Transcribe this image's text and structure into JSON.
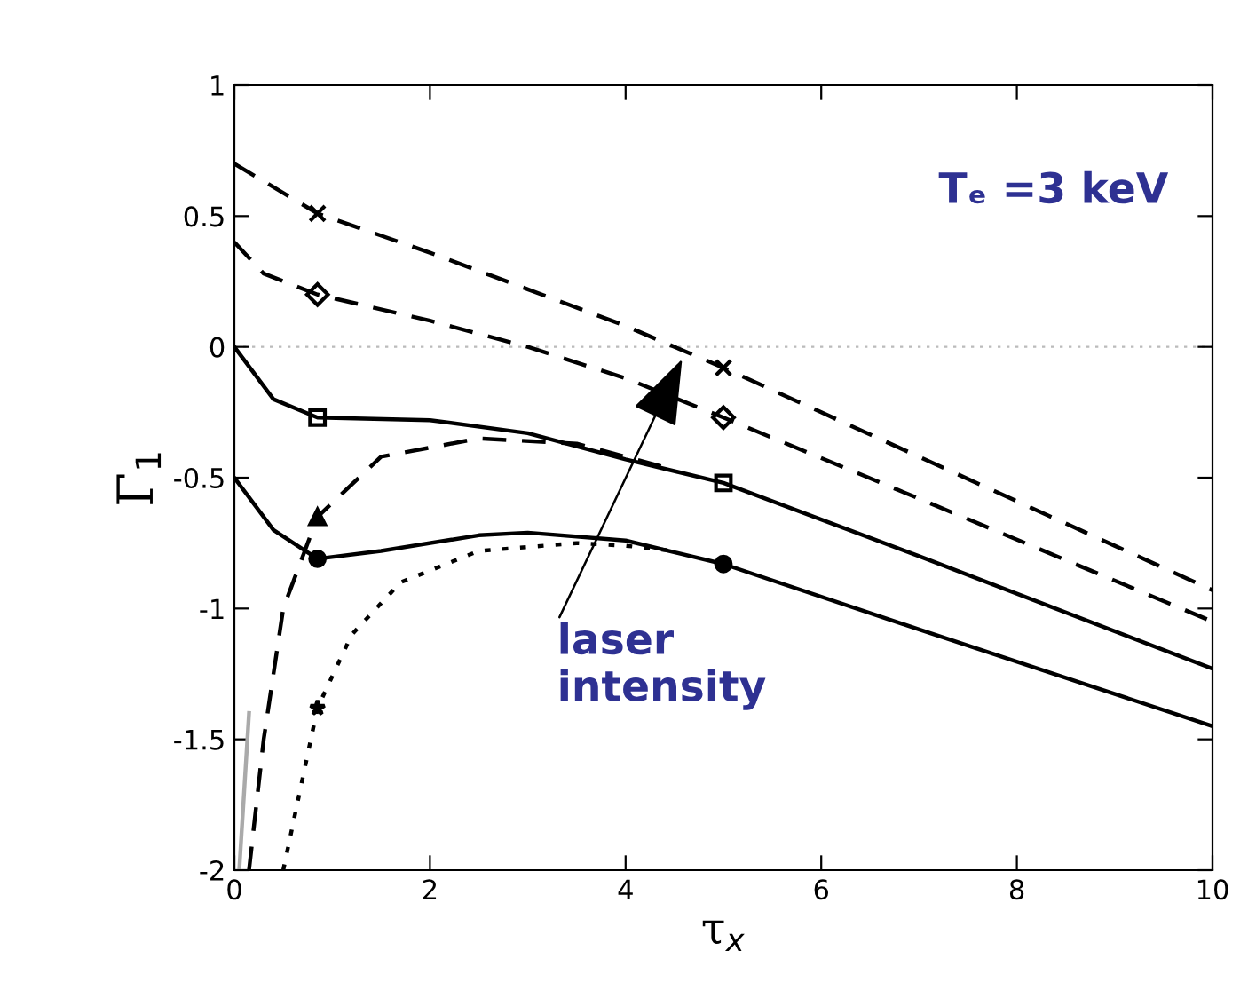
{
  "chart_data": {
    "type": "line",
    "xlabel": "τ$_{x}$",
    "ylabel": "Γ$_{1}$",
    "xlim": [
      0,
      10
    ],
    "ylim": [
      -2,
      1
    ],
    "xticks": [
      0,
      2,
      4,
      6,
      8,
      10
    ],
    "yticks": [
      -2,
      -1.5,
      -1,
      -0.5,
      0,
      0.5,
      1
    ],
    "grid": false,
    "legend": false,
    "series": [
      {
        "color": "#000000",
        "line_style": "dashed",
        "marker": "none",
        "x": [
          0,
          0.85,
          2,
          3,
          4,
          5,
          6,
          7,
          8,
          9,
          10
        ],
        "values": [
          0.7,
          0.51,
          0.36,
          0.22,
          0.08,
          -0.08,
          -0.25,
          -0.42,
          -0.59,
          -0.76,
          -0.93
        ]
      },
      {
        "color": "#000000",
        "line_style": "dashed",
        "marker": "none",
        "x": [
          0,
          0.3,
          0.85,
          2,
          3,
          4,
          5,
          7,
          10
        ],
        "values": [
          0.4,
          0.28,
          0.2,
          0.1,
          0.0,
          -0.12,
          -0.27,
          -0.58,
          -1.05
        ]
      },
      {
        "color": "#000000",
        "line_style": "solid",
        "marker": "none",
        "x": [
          0,
          0.4,
          0.85,
          2,
          3,
          4,
          5,
          7,
          10
        ],
        "values": [
          0,
          -0.2,
          -0.27,
          -0.28,
          -0.33,
          -0.43,
          -0.52,
          -0.8,
          -1.23
        ]
      },
      {
        "color": "#000000",
        "line_style": "dashed",
        "marker": "none",
        "x": [
          0.15,
          0.3,
          0.5,
          0.85,
          1.5,
          2.5,
          3.5,
          4.5
        ],
        "values": [
          -2,
          -1.5,
          -1.0,
          -0.65,
          -0.42,
          -0.35,
          -0.37,
          -0.47
        ]
      },
      {
        "color": "#000000",
        "line_style": "solid",
        "marker": "none",
        "x": [
          0,
          0.4,
          0.85,
          1.5,
          2.5,
          3,
          4,
          5,
          7,
          10
        ],
        "values": [
          -0.5,
          -0.7,
          -0.81,
          -0.78,
          -0.72,
          -0.71,
          -0.74,
          -0.83,
          -1.08,
          -1.45
        ]
      },
      {
        "color": "#000000",
        "line_style": "dotted",
        "marker": "none",
        "x": [
          0.5,
          0.85,
          1.2,
          1.7,
          2.5,
          3.5,
          4,
          4.5
        ],
        "values": [
          -2,
          -1.38,
          -1.1,
          -0.9,
          -0.78,
          -0.75,
          -0.76,
          -0.78
        ]
      },
      {
        "color": "#aaaaaa",
        "line_style": "solid",
        "marker": "none",
        "x": [
          0.05,
          0.1,
          0.15
        ],
        "values": [
          -2,
          -1.7,
          -1.4
        ]
      },
      {
        "type": "scatter",
        "color": "#000000",
        "marker": "cross",
        "x": [
          0.85,
          5
        ],
        "values": [
          0.51,
          -0.08
        ]
      },
      {
        "type": "scatter",
        "color": "#000000",
        "marker": "diamond",
        "x": [
          0.85,
          5
        ],
        "values": [
          0.2,
          -0.27
        ]
      },
      {
        "type": "scatter",
        "color": "#000000",
        "marker": "square",
        "x": [
          0.85,
          5
        ],
        "values": [
          -0.27,
          -0.52
        ]
      },
      {
        "type": "scatter",
        "color": "#000000",
        "marker": "triangle",
        "x": [
          0.85
        ],
        "values": [
          -0.65
        ]
      },
      {
        "type": "scatter",
        "color": "#000000",
        "marker": "circle",
        "x": [
          0.85,
          5
        ],
        "values": [
          -0.81,
          -0.83
        ]
      },
      {
        "type": "scatter",
        "color": "#000000",
        "marker": "star",
        "x": [
          0.85
        ],
        "values": [
          -1.38
        ]
      }
    ],
    "ref_lines": [
      {
        "axis": "y",
        "value": 0,
        "color": "#bbbbbb",
        "line_style": "dotted"
      }
    ],
    "annotations": [
      "Tₑ =3 keV",
      {
        "text": "laser intensity",
        "x": 4.6,
        "y": -0.03
      }
    ]
  }
}
